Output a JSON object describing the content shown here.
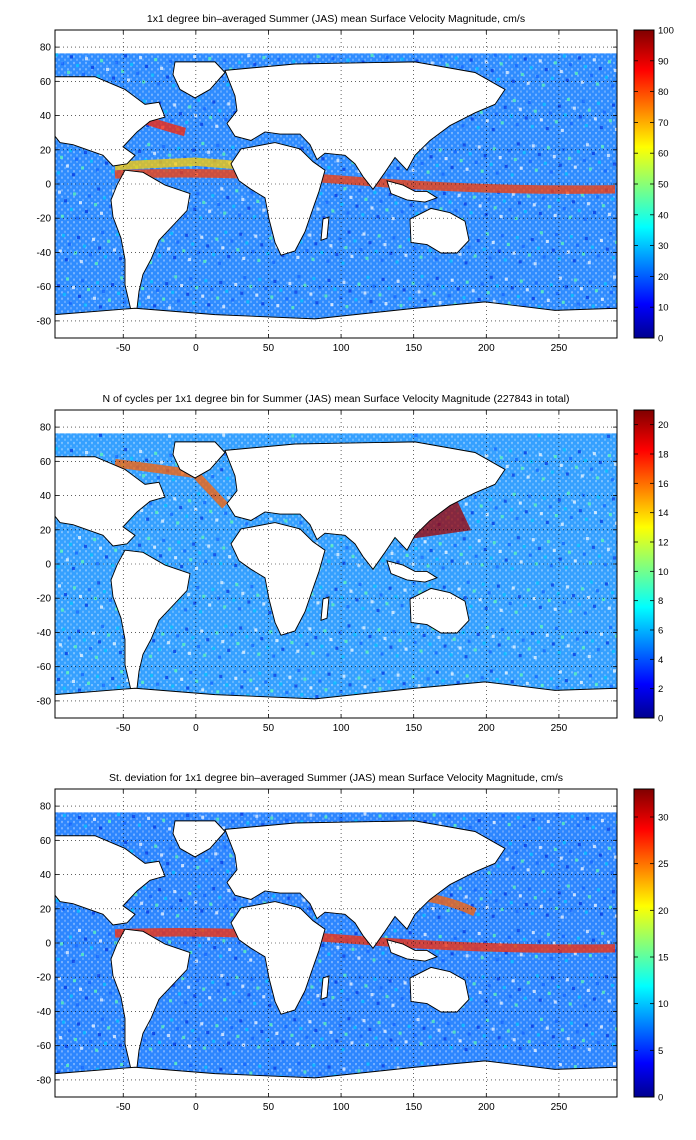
{
  "figure": {
    "panels": [
      {
        "title": "1x1 degree bin–averaged Summer (JAS) mean Surface Velocity Magnitude, cm/s",
        "colorbar": {
          "min": 0,
          "max": 100,
          "ticks": [
            "0",
            "10",
            "20",
            "30",
            "40",
            "50",
            "60",
            "70",
            "80",
            "90",
            "100"
          ]
        }
      },
      {
        "title": "N of cycles per 1x1 degree bin for Summer (JAS) mean Surface Velocity Magnitude (227843 in total)",
        "colorbar": {
          "min": 0,
          "max": 21,
          "ticks": [
            "0",
            "2",
            "4",
            "6",
            "8",
            "10",
            "12",
            "14",
            "16",
            "18",
            "20"
          ]
        }
      },
      {
        "title": "St. deviation for 1x1 degree bin–averaged Summer (JAS) mean Surface Velocity Magnitude, cm/s",
        "colorbar": {
          "min": 0,
          "max": 33,
          "ticks": [
            "0",
            "5",
            "10",
            "15",
            "20",
            "25",
            "30"
          ]
        }
      }
    ],
    "map_axes": {
      "xlim": [
        -97,
        290
      ],
      "ylim": [
        -90,
        90
      ],
      "xticks": [
        "-50",
        "0",
        "50",
        "100",
        "150",
        "200",
        "250"
      ],
      "yticks": [
        "-80",
        "-60",
        "-40",
        "-20",
        "0",
        "20",
        "40",
        "60",
        "80"
      ],
      "grid": true,
      "colormap": "jet"
    }
  }
}
